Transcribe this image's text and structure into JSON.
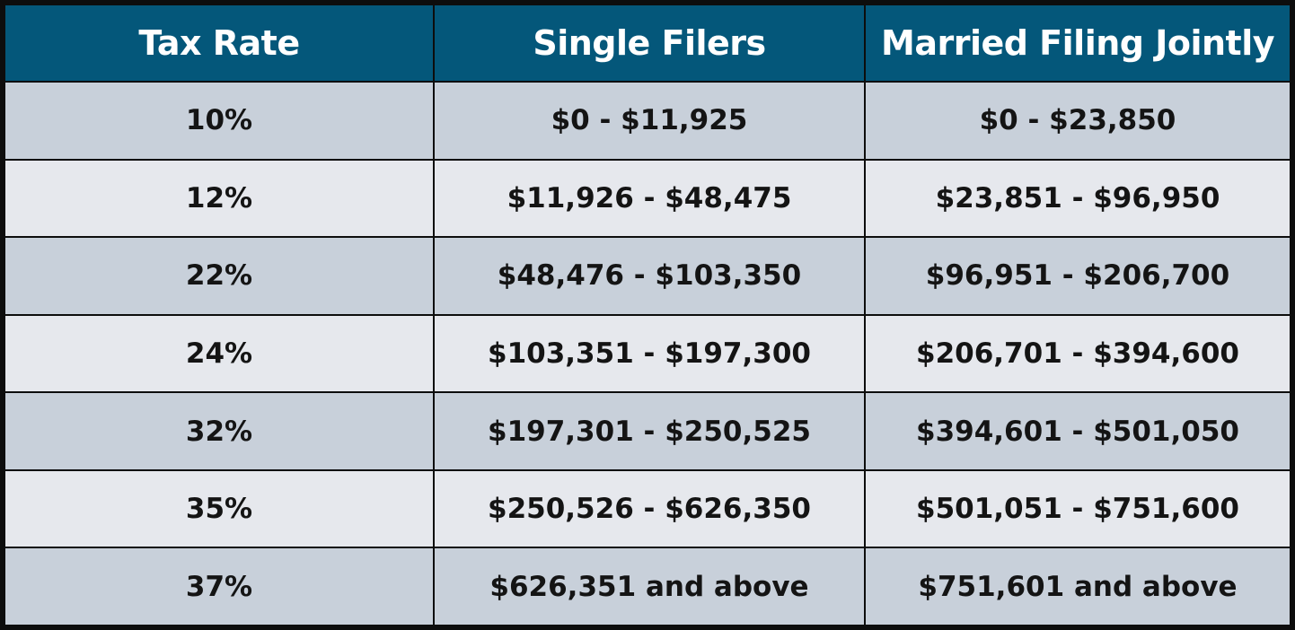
{
  "table": {
    "headers": [
      "Tax Rate",
      "Single Filers",
      "Married Filing Jointly"
    ],
    "rows": [
      [
        "10%",
        "$0 - $11,925",
        "$0 - $23,850"
      ],
      [
        "12%",
        "$11,926 - $48,475",
        "$23,851 - $96,950"
      ],
      [
        "22%",
        "$48,476 - $103,350",
        "$96,951 - $206,700"
      ],
      [
        "24%",
        "$103,351 - $197,300",
        "$206,701 - $394,600"
      ],
      [
        "32%",
        "$197,301 - $250,525",
        "$394,601 - $501,050"
      ],
      [
        "35%",
        "$250,526 - $626,350",
        "$501,051 - $751,600"
      ],
      [
        "37%",
        "$626,351 and above",
        "$751,601 and above"
      ]
    ]
  },
  "colors": {
    "header_bg": "#04577a",
    "header_text": "#ffffff",
    "row_odd_bg": "#c8d0da",
    "row_even_bg": "#e6e8ed",
    "border": "#0d0d0d"
  }
}
